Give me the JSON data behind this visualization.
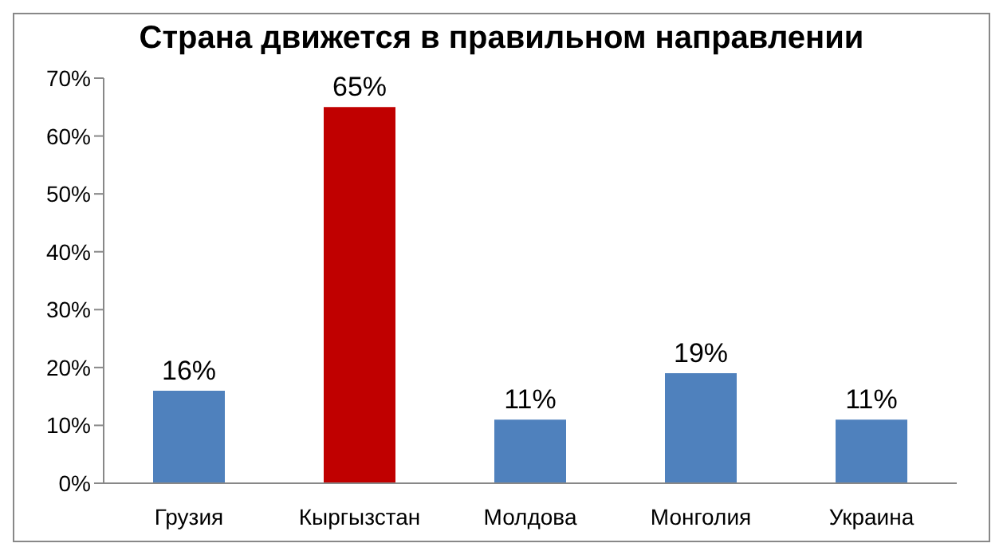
{
  "chart_data": {
    "type": "bar",
    "title": "Страна движется в правильном направлении",
    "categories": [
      "Грузия",
      "Кыргызстан",
      "Молдова",
      "Монголия",
      "Украина"
    ],
    "values": [
      16,
      65,
      11,
      19,
      11
    ],
    "colors": [
      "#4f81bd",
      "#c00000",
      "#4f81bd",
      "#4f81bd",
      "#4f81bd"
    ],
    "value_labels": [
      "16%",
      "65%",
      "11%",
      "19%",
      "11%"
    ],
    "ylim": [
      0,
      70
    ],
    "yticks": [
      {
        "value": 0,
        "label": "0%"
      },
      {
        "value": 10,
        "label": "10%"
      },
      {
        "value": 20,
        "label": "20%"
      },
      {
        "value": 30,
        "label": "30%"
      },
      {
        "value": 40,
        "label": "40%"
      },
      {
        "value": 50,
        "label": "50%"
      },
      {
        "value": 60,
        "label": "60%"
      },
      {
        "value": 70,
        "label": "70%"
      }
    ],
    "grid": false
  }
}
